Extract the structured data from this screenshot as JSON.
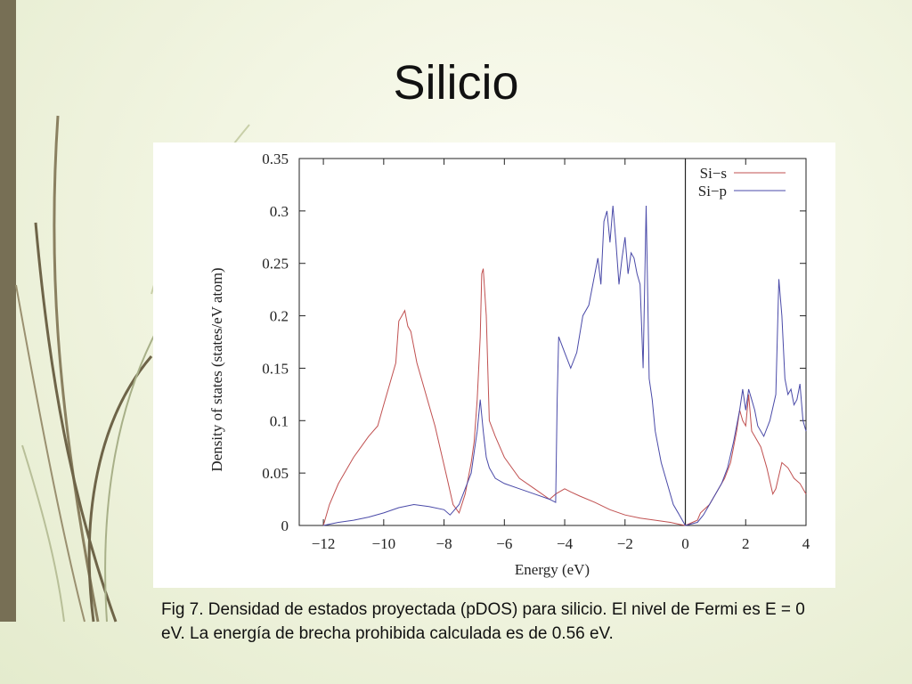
{
  "slide": {
    "title": "Silicio",
    "caption": "Fig 7. Densidad de estados proyectada (pDOS)  para silicio. El nivel de Fermi es E = 0 eV. La energía de brecha prohibida calculada es de 0.56 eV."
  },
  "chart_data": {
    "type": "line",
    "xlabel": "Energy (eV)",
    "ylabel": "Density of states (states/eV atom)",
    "xlim": [
      -12.8,
      4
    ],
    "ylim": [
      0,
      0.35
    ],
    "xticks": [
      -12,
      -10,
      -8,
      -6,
      -4,
      -2,
      0,
      2,
      4
    ],
    "xtick_labels": [
      "−12",
      "−10",
      "−8",
      "−6",
      "−4",
      "−2",
      "0",
      "2",
      "4"
    ],
    "yticks": [
      0,
      0.05,
      0.1,
      0.15,
      0.2,
      0.25,
      0.3,
      0.35
    ],
    "ytick_labels": [
      "0",
      "0.05",
      "0.1",
      "0.15",
      "0.2",
      "0.25",
      "0.3",
      "0.35"
    ],
    "fermi_level": 0,
    "legend_position": "top-right",
    "series": [
      {
        "name": "Si−s",
        "color": "#c05050",
        "x": [
          -12.0,
          -11.8,
          -11.5,
          -11.0,
          -10.5,
          -10.2,
          -10.0,
          -9.8,
          -9.6,
          -9.5,
          -9.4,
          -9.3,
          -9.2,
          -9.1,
          -9.0,
          -8.9,
          -8.7,
          -8.5,
          -8.3,
          -8.1,
          -7.9,
          -7.7,
          -7.5,
          -7.3,
          -7.1,
          -7.0,
          -6.9,
          -6.8,
          -6.75,
          -6.7,
          -6.6,
          -6.5,
          -6.3,
          -6.0,
          -5.5,
          -5.0,
          -4.5,
          -4.3,
          -4.0,
          -3.8,
          -3.5,
          -3.0,
          -2.5,
          -2.0,
          -1.5,
          -1.0,
          -0.5,
          -0.2,
          0.0,
          0.4,
          0.5,
          0.8,
          1.0,
          1.3,
          1.5,
          1.7,
          1.8,
          1.9,
          2.0,
          2.1,
          2.2,
          2.3,
          2.5,
          2.7,
          2.9,
          3.0,
          3.2,
          3.4,
          3.6,
          3.8,
          4.0
        ],
        "y": [
          0.0,
          0.02,
          0.04,
          0.065,
          0.085,
          0.095,
          0.115,
          0.135,
          0.155,
          0.195,
          0.2,
          0.205,
          0.19,
          0.185,
          0.17,
          0.155,
          0.135,
          0.115,
          0.095,
          0.07,
          0.045,
          0.02,
          0.012,
          0.03,
          0.06,
          0.08,
          0.12,
          0.18,
          0.24,
          0.245,
          0.2,
          0.1,
          0.085,
          0.065,
          0.045,
          0.035,
          0.025,
          0.03,
          0.035,
          0.032,
          0.028,
          0.022,
          0.015,
          0.01,
          0.007,
          0.005,
          0.003,
          0.001,
          0.0,
          0.005,
          0.012,
          0.02,
          0.03,
          0.045,
          0.06,
          0.09,
          0.11,
          0.1,
          0.095,
          0.125,
          0.09,
          0.085,
          0.075,
          0.055,
          0.03,
          0.035,
          0.06,
          0.055,
          0.045,
          0.04,
          0.03
        ]
      },
      {
        "name": "Si−p",
        "color": "#4a4aa8",
        "x": [
          -12.0,
          -11.5,
          -11.0,
          -10.5,
          -10.0,
          -9.5,
          -9.0,
          -8.5,
          -8.0,
          -7.8,
          -7.5,
          -7.3,
          -7.1,
          -7.0,
          -6.9,
          -6.8,
          -6.7,
          -6.6,
          -6.5,
          -6.3,
          -6.0,
          -5.5,
          -5.0,
          -4.5,
          -4.3,
          -4.25,
          -4.2,
          -4.0,
          -3.8,
          -3.6,
          -3.4,
          -3.2,
          -3.0,
          -2.9,
          -2.8,
          -2.7,
          -2.6,
          -2.5,
          -2.4,
          -2.3,
          -2.2,
          -2.1,
          -2.0,
          -1.9,
          -1.8,
          -1.7,
          -1.6,
          -1.5,
          -1.4,
          -1.3,
          -1.2,
          -1.1,
          -1.0,
          -0.8,
          -0.6,
          -0.4,
          -0.2,
          0.0,
          0.4,
          0.6,
          0.8,
          1.0,
          1.2,
          1.4,
          1.6,
          1.8,
          1.9,
          2.0,
          2.1,
          2.2,
          2.3,
          2.4,
          2.6,
          2.8,
          3.0,
          3.1,
          3.2,
          3.3,
          3.4,
          3.5,
          3.6,
          3.7,
          3.8,
          3.9,
          4.0
        ],
        "y": [
          0.0,
          0.003,
          0.005,
          0.008,
          0.012,
          0.017,
          0.02,
          0.018,
          0.015,
          0.01,
          0.02,
          0.035,
          0.05,
          0.07,
          0.09,
          0.12,
          0.09,
          0.065,
          0.055,
          0.045,
          0.04,
          0.035,
          0.03,
          0.025,
          0.022,
          0.12,
          0.18,
          0.165,
          0.15,
          0.165,
          0.2,
          0.21,
          0.24,
          0.255,
          0.23,
          0.29,
          0.3,
          0.27,
          0.305,
          0.27,
          0.23,
          0.255,
          0.275,
          0.24,
          0.26,
          0.255,
          0.24,
          0.23,
          0.15,
          0.305,
          0.14,
          0.12,
          0.09,
          0.06,
          0.04,
          0.02,
          0.01,
          0.0,
          0.003,
          0.01,
          0.02,
          0.03,
          0.04,
          0.055,
          0.08,
          0.11,
          0.13,
          0.11,
          0.13,
          0.12,
          0.11,
          0.095,
          0.085,
          0.1,
          0.125,
          0.235,
          0.2,
          0.14,
          0.125,
          0.13,
          0.115,
          0.12,
          0.135,
          0.1,
          0.09
        ]
      }
    ]
  }
}
